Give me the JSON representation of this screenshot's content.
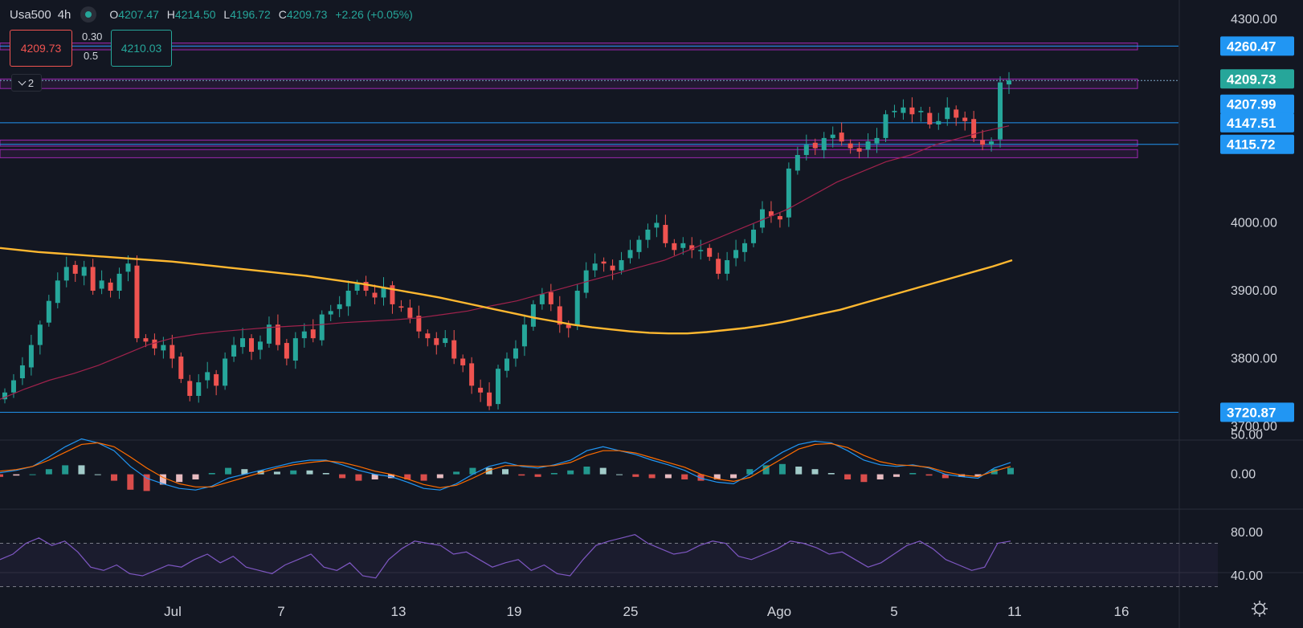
{
  "header": {
    "symbol": "Usa500",
    "timeframe": "4h",
    "o_label": "O",
    "o": "4207.47",
    "h_label": "H",
    "h": "4214.50",
    "l_label": "L",
    "l": "4196.72",
    "c_label": "C",
    "c": "4209.73",
    "change": "+2.26 (+0.05%)"
  },
  "trade": {
    "sell": "4209.73",
    "buy": "4210.03",
    "spread_a": "0.30",
    "spread_b": "0.5"
  },
  "collapse_count": "2",
  "colors": {
    "bg": "#131722",
    "up": "#26a69a",
    "down": "#ef5350",
    "hline": "#2196f3",
    "zone": "#9c27b0",
    "ma_long": "#ffb830",
    "ma_short": "#a0224c",
    "macd": "#2196f3",
    "signal": "#ff6d00",
    "rsi": "#7e57c2"
  },
  "chart_data": [
    {
      "type": "candlestick",
      "price_axis": {
        "ticks": [
          "4300.00",
          "4000.00",
          "3900.00",
          "3800.00",
          "3700.00"
        ],
        "range": [
          3680,
          4320
        ]
      },
      "time_axis": {
        "ticks": [
          "Jul",
          "7",
          "13",
          "19",
          "25",
          "Ago",
          "5",
          "11",
          "16"
        ]
      },
      "price_labels": [
        {
          "value": 4260.47,
          "text": "4260.47",
          "color": "#2196f3"
        },
        {
          "value": 4209.73,
          "text": "4209.73",
          "color": "#26a69a"
        },
        {
          "value": 4207.99,
          "text": "4207.99",
          "color": "#2196f3"
        },
        {
          "value": 4147.51,
          "text": "4147.51",
          "color": "#2196f3"
        },
        {
          "value": 4115.72,
          "text": "4115.72",
          "color": "#2196f3"
        },
        {
          "value": 3720.87,
          "text": "3720.87",
          "color": "#2196f3"
        }
      ],
      "horizontal_lines": [
        4260.47,
        4209.73,
        4147.51,
        4115.72,
        3720.87
      ],
      "zones": [
        [
          4255,
          4265
        ],
        [
          4198,
          4212
        ],
        [
          4113,
          4122
        ],
        [
          4096,
          4108
        ]
      ],
      "close_series": [
        3750,
        3768,
        3790,
        3820,
        3850,
        3885,
        3915,
        3935,
        3925,
        3935,
        3900,
        3915,
        3900,
        3925,
        3940,
        3830,
        3825,
        3815,
        3820,
        3800,
        3770,
        3745,
        3765,
        3780,
        3760,
        3800,
        3820,
        3830,
        3810,
        3825,
        3850,
        3820,
        3800,
        3830,
        3840,
        3830,
        3865,
        3870,
        3880,
        3900,
        3910,
        3900,
        3890,
        3905,
        3880,
        3875,
        3860,
        3840,
        3830,
        3820,
        3830,
        3800,
        3790,
        3760,
        3750,
        3730,
        3785,
        3800,
        3815,
        3850,
        3880,
        3895,
        3880,
        3850,
        3845,
        3900,
        3930,
        3940,
        3940,
        3930,
        3945,
        3960,
        3975,
        3990,
        4000,
        3970,
        3960,
        3970,
        3960,
        3960,
        3950,
        3925,
        3945,
        3960,
        3970,
        3990,
        4020,
        4010,
        4005,
        4080,
        4100,
        4115,
        4110,
        4125,
        4130,
        4120,
        4110,
        4105,
        4120,
        4125,
        4160,
        4165,
        4170,
        4160,
        4165,
        4145,
        4150,
        4170,
        4155,
        4150,
        4125,
        4115,
        4120,
        4207,
        4210
      ],
      "ma_long": [
        3963,
        3960,
        3957,
        3955,
        3953,
        3951,
        3949,
        3947,
        3945,
        3943,
        3940,
        3937,
        3934,
        3931,
        3928,
        3925,
        3922,
        3918,
        3914,
        3910,
        3905,
        3900,
        3895,
        3890,
        3884,
        3878,
        3872,
        3866,
        3860,
        3855,
        3850,
        3846,
        3843,
        3840,
        3838,
        3837,
        3837,
        3839,
        3842,
        3845,
        3849,
        3854,
        3860,
        3866,
        3872,
        3880,
        3888,
        3896,
        3904,
        3912,
        3920,
        3928,
        3936,
        3945
      ],
      "ma_short": [
        3740,
        3755,
        3768,
        3778,
        3790,
        3805,
        3820,
        3830,
        3836,
        3840,
        3843,
        3846,
        3848,
        3850,
        3853,
        3855,
        3857,
        3860,
        3865,
        3870,
        3878,
        3885,
        3895,
        3905,
        3915,
        3925,
        3935,
        3945,
        3960,
        3975,
        3990,
        4005,
        4020,
        4040,
        4060,
        4075,
        4090,
        4100,
        4115,
        4125,
        4135,
        4143
      ],
      "ma_long_label": "",
      "ma_short_label": ""
    },
    {
      "type": "macd",
      "axis_ticks": [
        "50.00",
        "0.00"
      ],
      "range": [
        -30,
        60
      ],
      "macd": [
        2,
        5,
        10,
        22,
        35,
        45,
        40,
        30,
        10,
        -5,
        -12,
        -18,
        -20,
        -15,
        -5,
        0,
        5,
        10,
        15,
        18,
        18,
        12,
        5,
        0,
        -3,
        -10,
        -18,
        -20,
        -12,
        0,
        10,
        15,
        10,
        8,
        12,
        18,
        30,
        35,
        30,
        25,
        18,
        12,
        5,
        -5,
        -10,
        -12,
        0,
        15,
        28,
        38,
        42,
        40,
        30,
        18,
        12,
        10,
        12,
        8,
        0,
        -3,
        -5,
        8,
        15
      ],
      "signal": [
        4,
        6,
        10,
        18,
        28,
        38,
        40,
        35,
        22,
        8,
        -4,
        -12,
        -16,
        -16,
        -10,
        -4,
        2,
        8,
        12,
        15,
        17,
        15,
        10,
        4,
        0,
        -6,
        -13,
        -17,
        -14,
        -5,
        5,
        11,
        11,
        10,
        11,
        15,
        24,
        30,
        30,
        27,
        21,
        15,
        9,
        0,
        -6,
        -9,
        -4,
        8,
        20,
        32,
        38,
        39,
        34,
        24,
        16,
        12,
        11,
        9,
        3,
        -1,
        -3,
        4,
        10
      ]
    },
    {
      "type": "rsi",
      "axis_ticks": [
        "80.00",
        "40.00"
      ],
      "range": [
        30,
        90
      ],
      "values": [
        55,
        60,
        70,
        75,
        68,
        72,
        62,
        48,
        45,
        50,
        42,
        40,
        45,
        50,
        48,
        55,
        60,
        52,
        58,
        48,
        45,
        42,
        50,
        55,
        60,
        48,
        45,
        52,
        40,
        38,
        55,
        65,
        72,
        70,
        68,
        60,
        62,
        55,
        48,
        52,
        55,
        45,
        50,
        42,
        40,
        55,
        68,
        72,
        75,
        78,
        70,
        65,
        60,
        62,
        68,
        72,
        70,
        58,
        55,
        60,
        65,
        72,
        70,
        66,
        60,
        62,
        55,
        48,
        52,
        60,
        68,
        72,
        65,
        55,
        50,
        45,
        48,
        70,
        72
      ]
    }
  ]
}
